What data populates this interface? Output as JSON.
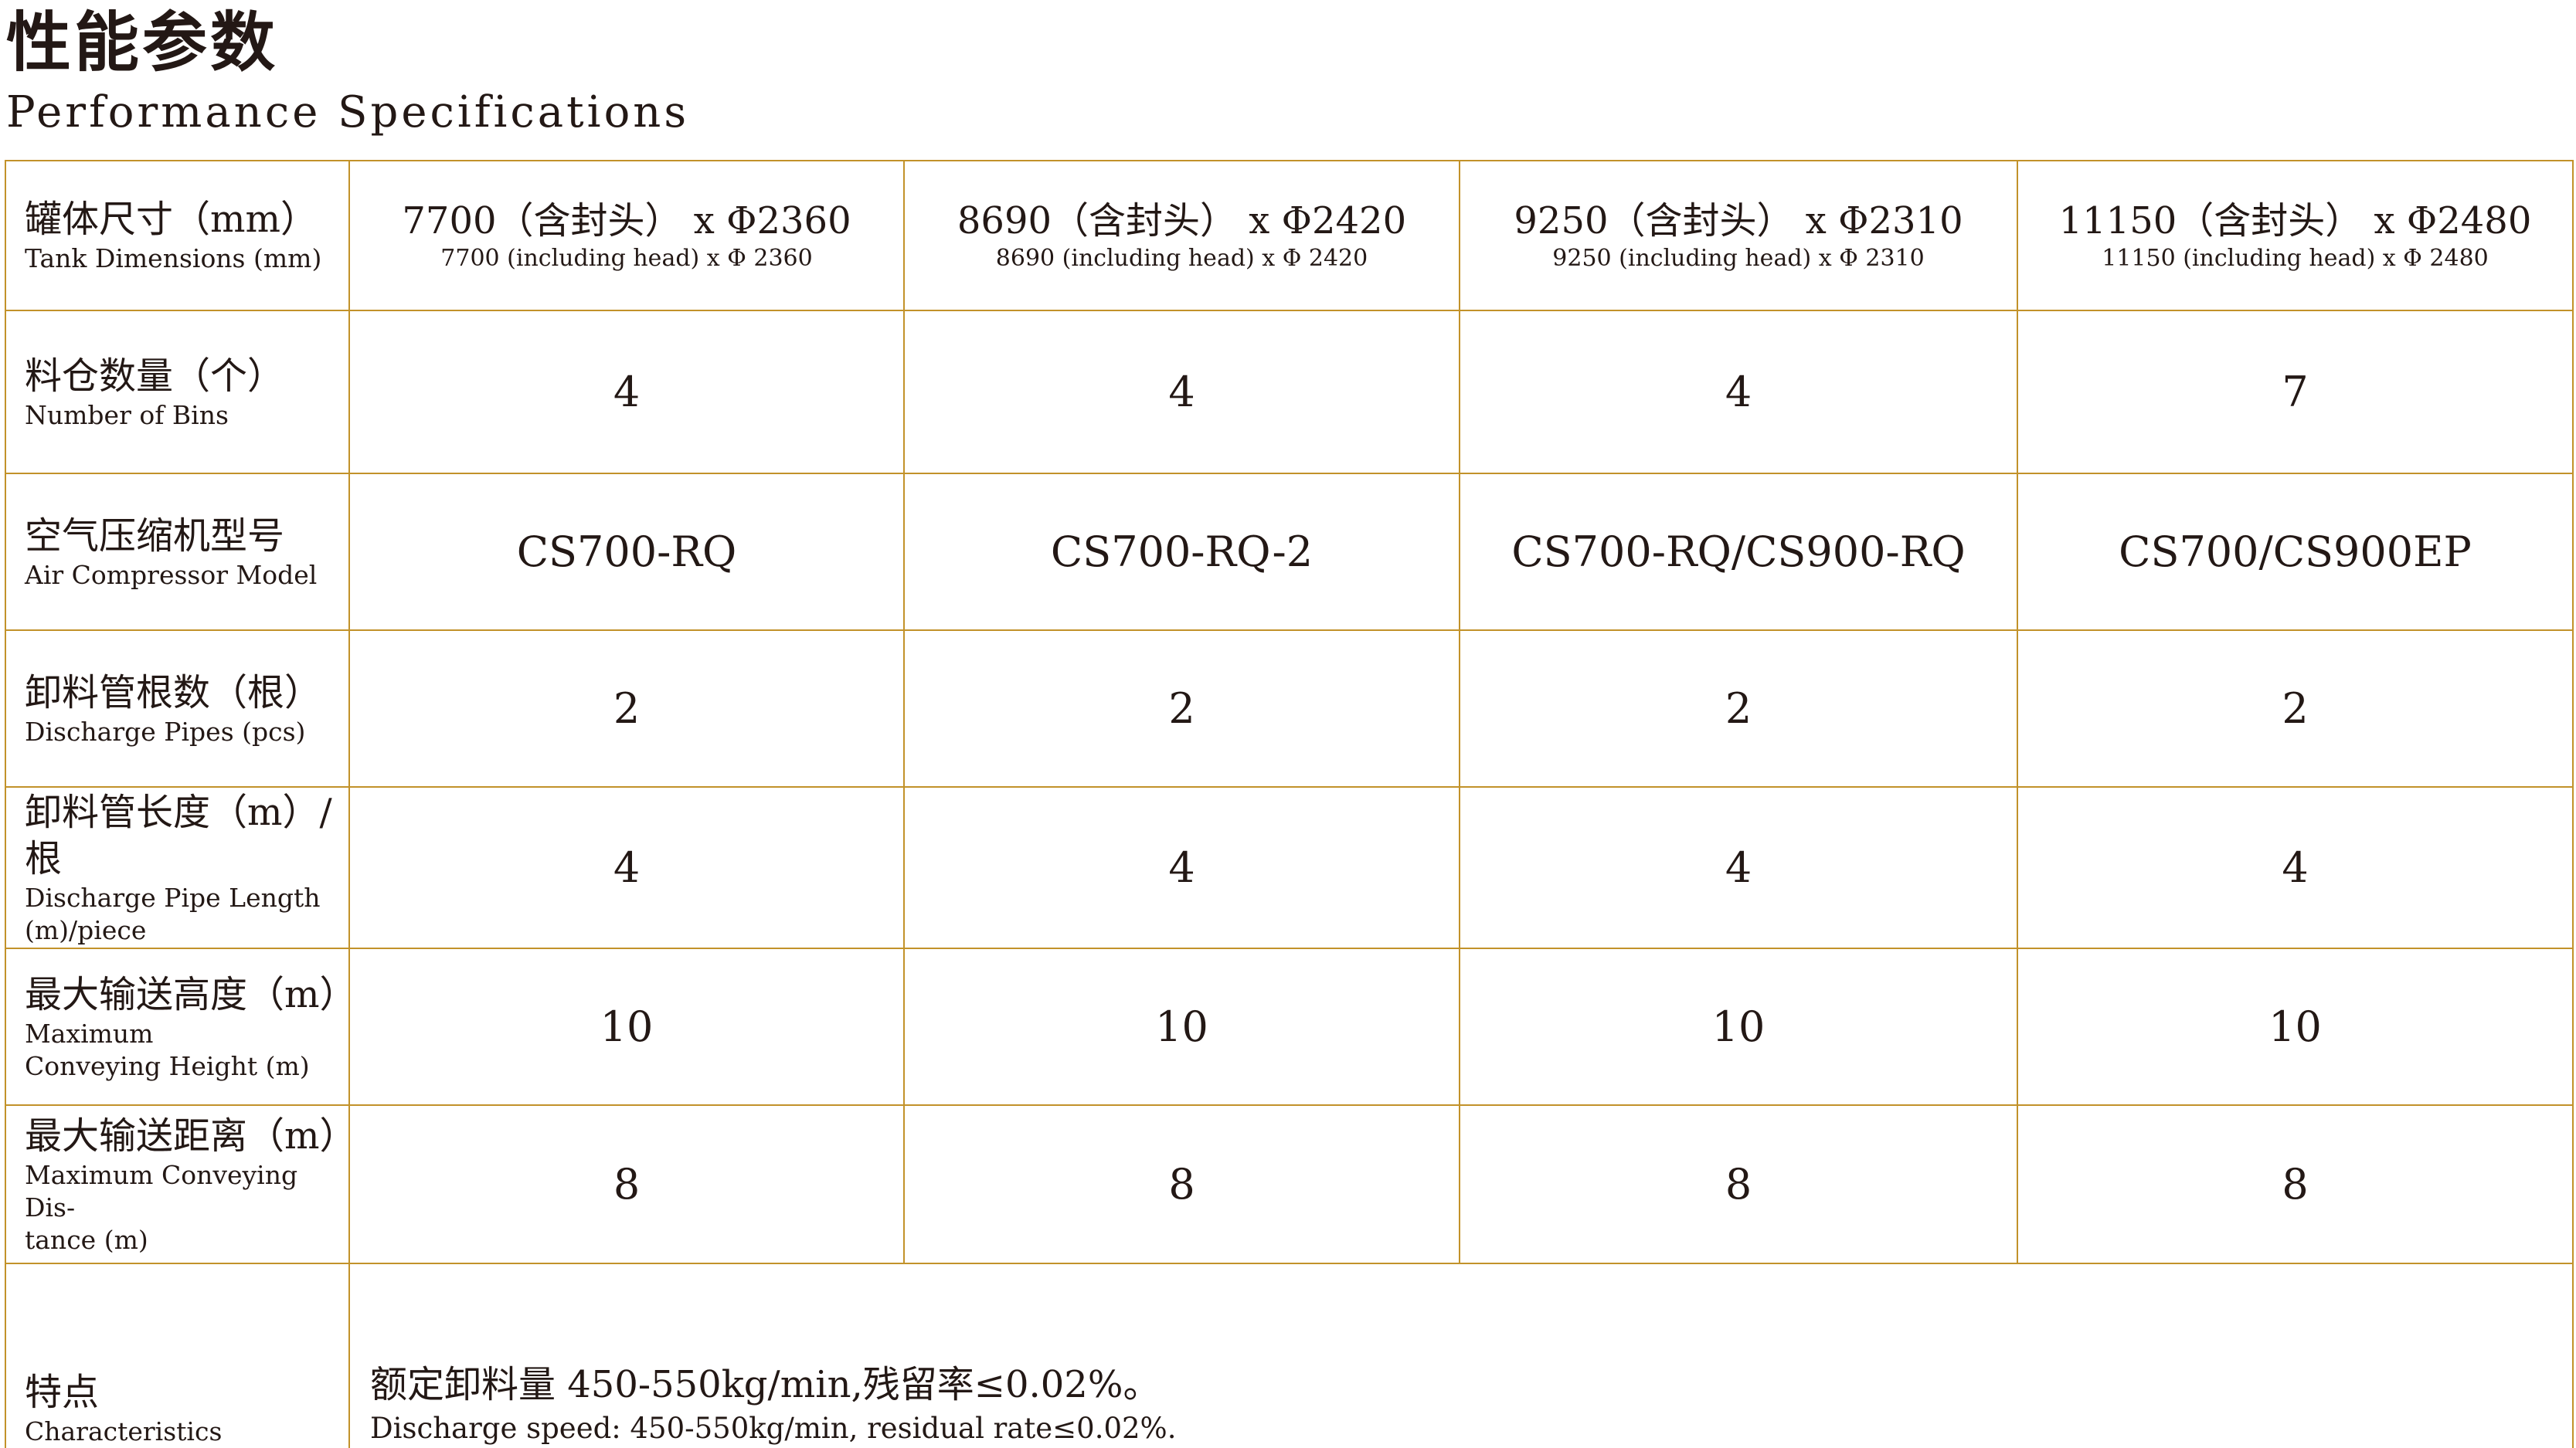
{
  "page": {
    "title_zh": "性能参数",
    "title_en": "Performance Specifications"
  },
  "colors": {
    "border": "#C2922A",
    "text": "#231815"
  },
  "table": {
    "header": {
      "label_zh": "罐体尺寸（mm）",
      "label_en": "Tank Dimensions (mm)",
      "columns": [
        {
          "zh": "7700（含封头） x Φ2360",
          "en": "7700 (including head) x Φ 2360"
        },
        {
          "zh": "8690（含封头） x Φ2420",
          "en": "8690 (including head) x Φ 2420"
        },
        {
          "zh": "9250（含封头） x Φ2310",
          "en": "9250 (including head) x Φ 2310"
        },
        {
          "zh": "11150（含封头） x Φ2480",
          "en": "11150 (including head) x Φ 2480"
        }
      ]
    },
    "rows": [
      {
        "label_zh": "料仓数量（个）",
        "label_en": "Number of Bins",
        "values": [
          "4",
          "4",
          "4",
          "7"
        ]
      },
      {
        "label_zh": "空气压缩机型号",
        "label_en": "Air Compressor Model",
        "values": [
          "CS700-RQ",
          "CS700-RQ-2",
          "CS700-RQ/CS900-RQ",
          "CS700/CS900EP"
        ]
      },
      {
        "label_zh": "卸料管根数（根）",
        "label_en": "Discharge Pipes (pcs)",
        "values": [
          "2",
          "2",
          "2",
          "2"
        ]
      },
      {
        "label_zh": "卸料管长度（m）/根",
        "label_en": "Discharge Pipe Length\n(m)/piece",
        "values": [
          "4",
          "4",
          "4",
          "4"
        ]
      },
      {
        "label_zh": "最大输送高度（m）",
        "label_en": "Maximum\nConveying Height (m)",
        "values": [
          "10",
          "10",
          "10",
          "10"
        ]
      },
      {
        "label_zh": "最大输送距离（m）",
        "label_en": "Maximum Conveying Dis-\ntance (m)",
        "values": [
          "8",
          "8",
          "8",
          "8"
        ]
      }
    ],
    "footer": {
      "label_zh": "特点",
      "label_en": "Characteristics",
      "value_zh": "额定卸料量 450-550kg/min,残留率≤0.02%。",
      "value_en": "Discharge speed: 450-550kg/min, residual rate≤0.02%."
    }
  }
}
